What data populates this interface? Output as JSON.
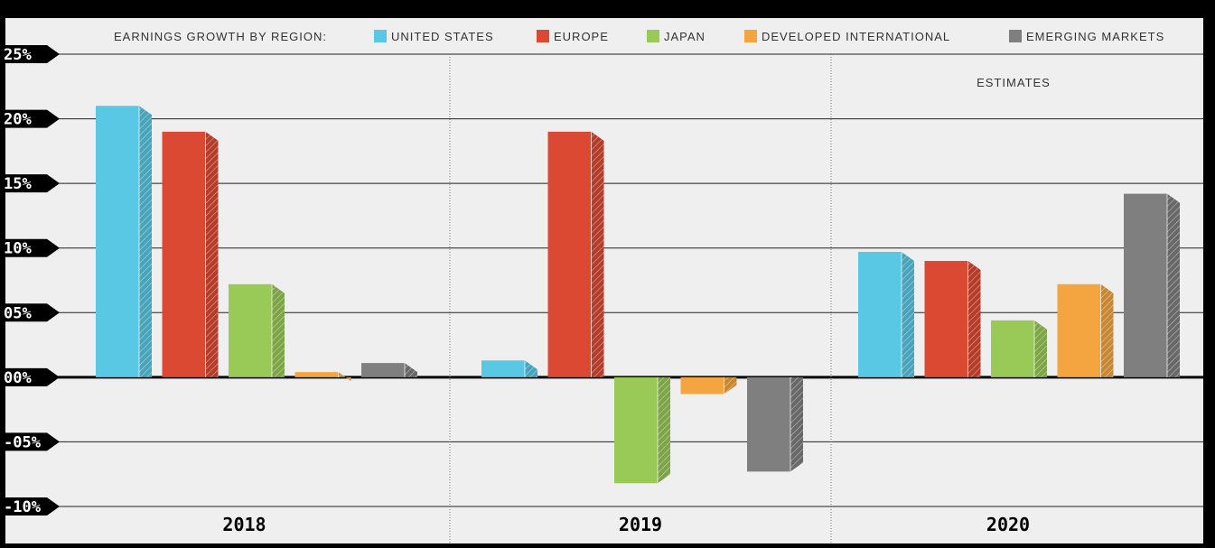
{
  "colors": {
    "background": "#000000",
    "plot_background": "#efefef",
    "United States": "#58c8e4",
    "Europe": "#dc4932",
    "Japan": "#99c957",
    "Developed International": "#f5a540",
    "Emerging Markets": "#7f7f7f"
  },
  "legend": {
    "title": "EARNINGS GROWTH BY REGION:",
    "items": [
      "UNITED STATES",
      "EUROPE",
      "JAPAN",
      "DEVELOPED INTERNATIONAL",
      "EMERGING MARKETS"
    ]
  },
  "chart_data": {
    "type": "bar",
    "title": "EARNINGS GROWTH BY REGION:",
    "categories": [
      "2018",
      "2019",
      "2020"
    ],
    "series": [
      {
        "name": "UNITED STATES",
        "values": [
          21.0,
          1.3,
          9.7
        ]
      },
      {
        "name": "EUROPE",
        "values": [
          19.0,
          19.0,
          9.0
        ]
      },
      {
        "name": "JAPAN",
        "values": [
          7.2,
          -8.2,
          4.4
        ]
      },
      {
        "name": "DEVELOPED INTERNATIONAL",
        "values": [
          0.4,
          -1.3,
          7.2
        ]
      },
      {
        "name": "EMERGING MARKETS",
        "values": [
          1.1,
          -7.3,
          14.2
        ]
      }
    ],
    "ylim": [
      -10,
      25
    ],
    "y_ticks": [
      25,
      20,
      15,
      10,
      5,
      0,
      -5,
      -10
    ],
    "y_tick_labels": [
      "25%",
      "20%",
      "15%",
      "10%",
      "05%",
      "00%",
      "-05%",
      "-10%"
    ],
    "annotations": [
      {
        "text": "ESTIMATES",
        "category": "2020"
      }
    ],
    "grid": true,
    "legend_position": "top"
  }
}
